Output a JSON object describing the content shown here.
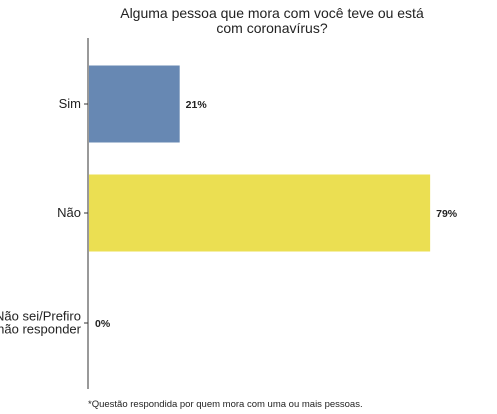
{
  "chart_data": {
    "type": "bar",
    "orientation": "horizontal",
    "title": [
      "Alguma pessoa que mora com você teve ou está",
      "com coronavírus?"
    ],
    "categories": [
      {
        "lines": [
          "Sim"
        ]
      },
      {
        "lines": [
          "Não"
        ]
      },
      {
        "lines": [
          "Não sei/Prefiro",
          "não responder"
        ]
      }
    ],
    "values": [
      21,
      79,
      0
    ],
    "value_labels": [
      "21%",
      "79%",
      "0%"
    ],
    "colors": [
      "#6788b3",
      "#ebdf52",
      "#cccccc"
    ],
    "xlim": [
      0,
      80
    ],
    "xlabel": "",
    "ylabel": "",
    "grid": false,
    "footnote": "*Questão respondida por quem mora com uma ou mais pessoas."
  }
}
